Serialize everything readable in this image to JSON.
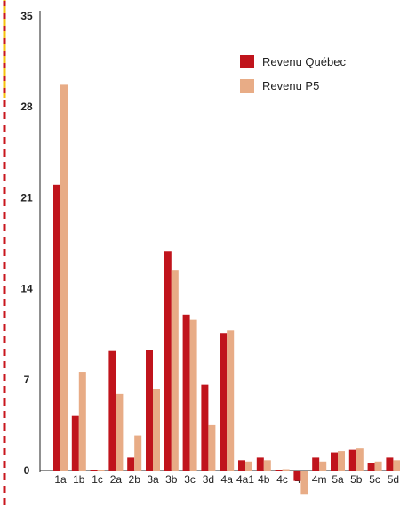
{
  "chart_data": {
    "type": "bar",
    "categories": [
      "1a",
      "1b",
      "1c",
      "2a",
      "2b",
      "3a",
      "3b",
      "3c",
      "3d",
      "4a",
      "4a1",
      "4b",
      "4c",
      "4d",
      "4m",
      "5a",
      "5b",
      "5c",
      "5d"
    ],
    "series": [
      {
        "name": "Revenu Québec",
        "color": "#c0141c",
        "values": [
          22.0,
          4.2,
          0.0,
          9.2,
          1.0,
          9.3,
          16.9,
          12.0,
          6.6,
          10.6,
          0.8,
          1.0,
          0.0,
          -0.8,
          1.0,
          1.4,
          1.6,
          0.6,
          1.0
        ]
      },
      {
        "name": "Revenu P5",
        "color": "#e8ac86",
        "values": [
          29.7,
          7.6,
          0.0,
          5.9,
          2.7,
          6.3,
          15.4,
          11.6,
          3.5,
          10.8,
          0.7,
          0.8,
          0.1,
          -1.8,
          0.7,
          1.5,
          1.7,
          0.7,
          0.8
        ]
      }
    ],
    "y_ticks": [
      0,
      7,
      14,
      21,
      28,
      35
    ],
    "ylim": [
      -2,
      35
    ],
    "grid": false,
    "legend_position": "top-right",
    "frame_colors": {
      "dash_red": "#c8161d",
      "dash_yellow": "#f4c20d"
    }
  }
}
